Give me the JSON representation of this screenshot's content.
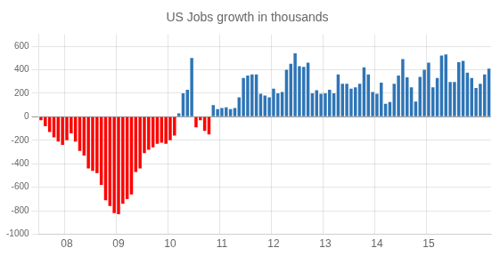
{
  "chart_data": {
    "type": "bar",
    "title": "US Jobs growth in thousands",
    "categories": [
      null,
      null,
      null,
      null,
      null,
      null,
      "08",
      null,
      null,
      null,
      null,
      null,
      null,
      null,
      null,
      null,
      null,
      null,
      "09",
      null,
      null,
      null,
      null,
      null,
      null,
      null,
      null,
      null,
      null,
      null,
      "10",
      null,
      null,
      null,
      null,
      null,
      null,
      null,
      null,
      null,
      null,
      null,
      "11",
      null,
      null,
      null,
      null,
      null,
      null,
      null,
      null,
      null,
      null,
      null,
      "12",
      null,
      null,
      null,
      null,
      null,
      null,
      null,
      null,
      null,
      null,
      null,
      "13",
      null,
      null,
      null,
      null,
      null,
      null,
      null,
      null,
      null,
      null,
      null,
      "14",
      null,
      null,
      null,
      null,
      null,
      null,
      null,
      null,
      null,
      null,
      null,
      "15",
      null,
      null,
      null,
      null,
      null,
      null,
      null,
      null,
      null,
      null,
      null,
      null,
      null,
      null
    ],
    "values": [
      -30,
      -80,
      -130,
      -175,
      -210,
      -240,
      -200,
      -140,
      -210,
      -290,
      -330,
      -440,
      -460,
      -480,
      -580,
      -710,
      -760,
      -820,
      -830,
      -740,
      -700,
      -660,
      -470,
      -440,
      -310,
      -280,
      -260,
      -230,
      -220,
      -230,
      -200,
      -160,
      30,
      200,
      230,
      500,
      -90,
      -30,
      -120,
      -150,
      100,
      65,
      75,
      80,
      65,
      75,
      165,
      330,
      350,
      360,
      360,
      195,
      180,
      165,
      240,
      200,
      210,
      400,
      450,
      540,
      430,
      425,
      460,
      200,
      225,
      195,
      200,
      230,
      200,
      360,
      280,
      280,
      240,
      250,
      280,
      420,
      360,
      210,
      195,
      290,
      110,
      125,
      280,
      350,
      490,
      335,
      250,
      130,
      340,
      400,
      460,
      250,
      330,
      520,
      530,
      295,
      295,
      465,
      475,
      375,
      330,
      245,
      280,
      360,
      410
    ],
    "colors": [
      "#ff0000",
      "#ff0000",
      "#ff0000",
      "#ff0000",
      "#ff0000",
      "#ff0000",
      "#ff0000",
      "#ff0000",
      "#ff0000",
      "#ff0000",
      "#ff0000",
      "#ff0000",
      "#ff0000",
      "#ff0000",
      "#ff0000",
      "#ff0000",
      "#ff0000",
      "#ff0000",
      "#ff0000",
      "#ff0000",
      "#ff0000",
      "#ff0000",
      "#ff0000",
      "#ff0000",
      "#ff0000",
      "#ff0000",
      "#ff0000",
      "#ff0000",
      "#ff0000",
      "#ff0000",
      "#ff0000",
      "#ff0000",
      "#2e75b6",
      "#2e75b6",
      "#2e75b6",
      "#2e75b6",
      "#ff0000",
      "#ff0000",
      "#ff0000",
      "#ff0000",
      "#2e75b6",
      "#2e75b6",
      "#2e75b6",
      "#2e75b6",
      "#2e75b6",
      "#2e75b6",
      "#2e75b6",
      "#2e75b6",
      "#2e75b6",
      "#2e75b6",
      "#2e75b6",
      "#2e75b6",
      "#2e75b6",
      "#2e75b6",
      "#2e75b6",
      "#2e75b6",
      "#2e75b6",
      "#2e75b6",
      "#2e75b6",
      "#2e75b6",
      "#2e75b6",
      "#2e75b6",
      "#2e75b6",
      "#2e75b6",
      "#2e75b6",
      "#2e75b6",
      "#2e75b6",
      "#2e75b6",
      "#2e75b6",
      "#2e75b6",
      "#2e75b6",
      "#2e75b6",
      "#2e75b6",
      "#2e75b6",
      "#2e75b6",
      "#2e75b6",
      "#2e75b6",
      "#2e75b6",
      "#2e75b6",
      "#2e75b6",
      "#2e75b6",
      "#2e75b6",
      "#2e75b6",
      "#2e75b6",
      "#2e75b6",
      "#2e75b6",
      "#2e75b6",
      "#2e75b6",
      "#2e75b6",
      "#2e75b6",
      "#2e75b6",
      "#2e75b6",
      "#2e75b6",
      "#2e75b6",
      "#2e75b6",
      "#2e75b6",
      "#2e75b6",
      "#2e75b6",
      "#2e75b6",
      "#2e75b6",
      "#2e75b6",
      "#2e75b6",
      "#2e75b6",
      "#2e75b6",
      "#2e75b6"
    ],
    "ylim": [
      -1000,
      700
    ],
    "yticks": [
      -1000,
      -800,
      -600,
      -400,
      -200,
      0,
      200,
      400,
      600
    ],
    "grid": true
  }
}
